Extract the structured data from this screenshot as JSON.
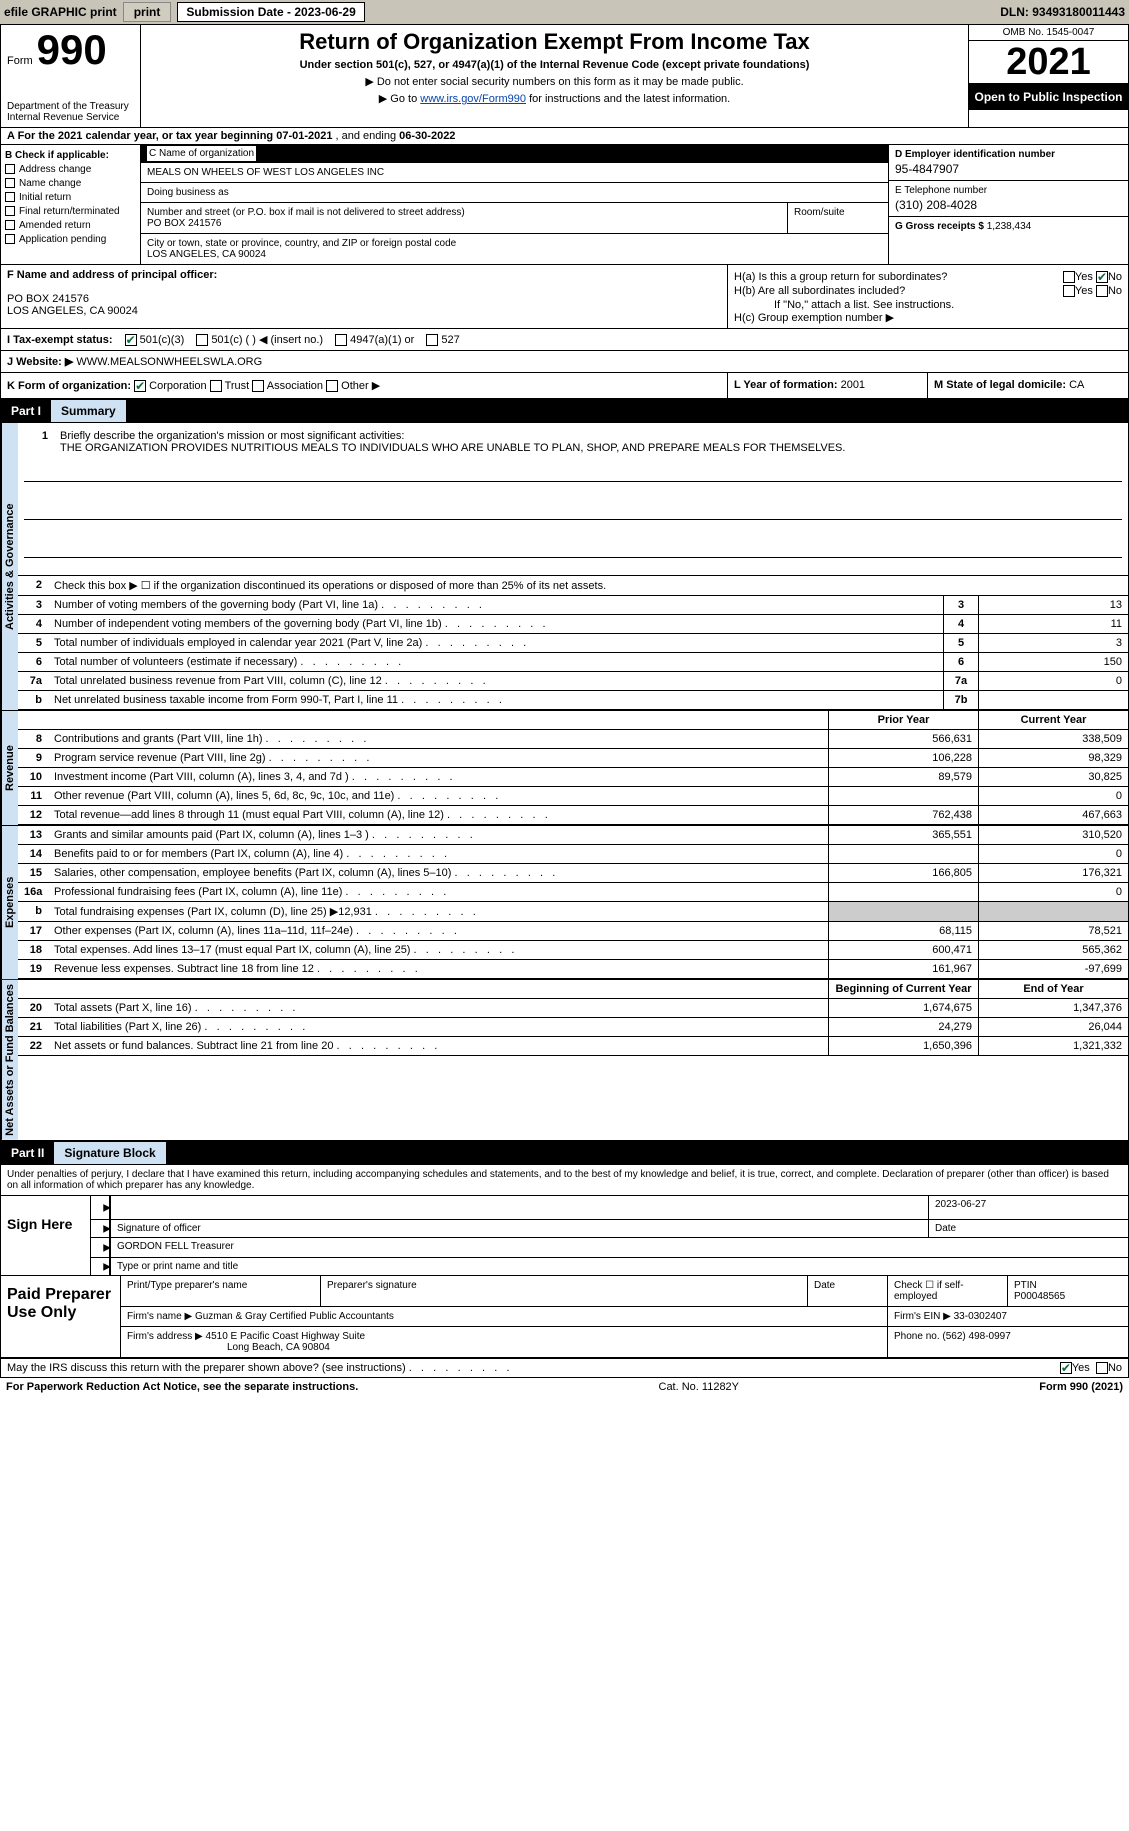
{
  "topbar": {
    "efile": "efile GRAPHIC print",
    "sub_label": "Submission Date - 2023-06-29",
    "dln": "DLN: 93493180011443"
  },
  "header": {
    "form_word": "Form",
    "form_num": "990",
    "title": "Return of Organization Exempt From Income Tax",
    "subtitle": "Under section 501(c), 527, or 4947(a)(1) of the Internal Revenue Code (except private foundations)",
    "note1": "▶ Do not enter social security numbers on this form as it may be made public.",
    "note2_pre": "▶ Go to ",
    "note2_link": "www.irs.gov/Form990",
    "note2_post": " for instructions and the latest information.",
    "dept": "Department of the Treasury",
    "irs": "Internal Revenue Service",
    "omb": "OMB No. 1545-0047",
    "year": "2021",
    "inspection": "Open to Public Inspection"
  },
  "section_a": {
    "text_pre": "A For the 2021 calendar year, or tax year beginning ",
    "begin": "07-01-2021",
    "mid": "  , and ending ",
    "end": "06-30-2022"
  },
  "col_b": {
    "label": "B Check if applicable:",
    "items": [
      "Address change",
      "Name change",
      "Initial return",
      "Final return/terminated",
      "Amended return",
      "Application pending"
    ]
  },
  "col_c": {
    "name_label": "C Name of organization",
    "name": "MEALS ON WHEELS OF WEST LOS ANGELES INC",
    "dba_label": "Doing business as",
    "addr_label": "Number and street (or P.O. box if mail is not delivered to street address)",
    "addr": "PO BOX 241576",
    "room_label": "Room/suite",
    "city_label": "City or town, state or province, country, and ZIP or foreign postal code",
    "city": "LOS ANGELES, CA  90024"
  },
  "col_d": {
    "ein_label": "D Employer identification number",
    "ein": "95-4847907",
    "tel_label": "E Telephone number",
    "tel": "(310) 208-4028",
    "gross_label": "G Gross receipts $",
    "gross": "1,238,434"
  },
  "col_f": {
    "label": "F  Name and address of principal officer:",
    "addr1": "PO BOX 241576",
    "addr2": "LOS ANGELES, CA  90024"
  },
  "col_h": {
    "ha": "H(a)  Is this a group return for subordinates?",
    "hb": "H(b)  Are all subordinates included?",
    "hb_note": "If \"No,\" attach a list. See instructions.",
    "hc": "H(c)  Group exemption number ▶",
    "yes": "Yes",
    "no": "No"
  },
  "row_i": {
    "label": "I  Tax-exempt status:",
    "o1": "501(c)(3)",
    "o2": "501(c) (  ) ◀ (insert no.)",
    "o3": "4947(a)(1) or",
    "o4": "527"
  },
  "row_j": {
    "label": "J  Website: ▶",
    "val": "WWW.MEALSONWHEELSWLA.ORG"
  },
  "row_k": {
    "label": "K Form of organization:",
    "corp": "Corporation",
    "trust": "Trust",
    "assoc": "Association",
    "other": "Other ▶",
    "l_label": "L Year of formation:",
    "l_val": "2001",
    "m_label": "M State of legal domicile:",
    "m_val": "CA"
  },
  "part1": {
    "label": "Part I",
    "title": "Summary"
  },
  "summary": {
    "gov_label": "Activities & Governance",
    "rev_label": "Revenue",
    "exp_label": "Expenses",
    "net_label": "Net Assets or Fund Balances",
    "mission_label": "Briefly describe the organization's mission or most significant activities:",
    "mission": "THE ORGANIZATION PROVIDES NUTRITIOUS MEALS TO INDIVIDUALS WHO ARE UNABLE TO PLAN, SHOP, AND PREPARE MEALS FOR THEMSELVES.",
    "line2": "Check this box ▶ ☐ if the organization discontinued its operations or disposed of more than 25% of its net assets.",
    "prior_year": "Prior Year",
    "current_year": "Current Year",
    "begin_year": "Beginning of Current Year",
    "end_year": "End of Year",
    "lines_gov": [
      {
        "n": "3",
        "t": "Number of voting members of the governing body (Part VI, line 1a)",
        "box": "3",
        "v": "13"
      },
      {
        "n": "4",
        "t": "Number of independent voting members of the governing body (Part VI, line 1b)",
        "box": "4",
        "v": "11"
      },
      {
        "n": "5",
        "t": "Total number of individuals employed in calendar year 2021 (Part V, line 2a)",
        "box": "5",
        "v": "3"
      },
      {
        "n": "6",
        "t": "Total number of volunteers (estimate if necessary)",
        "box": "6",
        "v": "150"
      },
      {
        "n": "7a",
        "t": "Total unrelated business revenue from Part VIII, column (C), line 12",
        "box": "7a",
        "v": "0"
      },
      {
        "n": "b",
        "t": "Net unrelated business taxable income from Form 990-T, Part I, line 11",
        "box": "7b",
        "v": ""
      }
    ],
    "lines_rev": [
      {
        "n": "8",
        "t": "Contributions and grants (Part VIII, line 1h)",
        "v1": "566,631",
        "v2": "338,509"
      },
      {
        "n": "9",
        "t": "Program service revenue (Part VIII, line 2g)",
        "v1": "106,228",
        "v2": "98,329"
      },
      {
        "n": "10",
        "t": "Investment income (Part VIII, column (A), lines 3, 4, and 7d )",
        "v1": "89,579",
        "v2": "30,825"
      },
      {
        "n": "11",
        "t": "Other revenue (Part VIII, column (A), lines 5, 6d, 8c, 9c, 10c, and 11e)",
        "v1": "",
        "v2": "0"
      },
      {
        "n": "12",
        "t": "Total revenue—add lines 8 through 11 (must equal Part VIII, column (A), line 12)",
        "v1": "762,438",
        "v2": "467,663"
      }
    ],
    "lines_exp": [
      {
        "n": "13",
        "t": "Grants and similar amounts paid (Part IX, column (A), lines 1–3 )",
        "v1": "365,551",
        "v2": "310,520"
      },
      {
        "n": "14",
        "t": "Benefits paid to or for members (Part IX, column (A), line 4)",
        "v1": "",
        "v2": "0"
      },
      {
        "n": "15",
        "t": "Salaries, other compensation, employee benefits (Part IX, column (A), lines 5–10)",
        "v1": "166,805",
        "v2": "176,321"
      },
      {
        "n": "16a",
        "t": "Professional fundraising fees (Part IX, column (A), line 11e)",
        "v1": "",
        "v2": "0"
      },
      {
        "n": "b",
        "t": "Total fundraising expenses (Part IX, column (D), line 25) ▶12,931",
        "v1": "shade",
        "v2": "shade"
      },
      {
        "n": "17",
        "t": "Other expenses (Part IX, column (A), lines 11a–11d, 11f–24e)",
        "v1": "68,115",
        "v2": "78,521"
      },
      {
        "n": "18",
        "t": "Total expenses. Add lines 13–17 (must equal Part IX, column (A), line 25)",
        "v1": "600,471",
        "v2": "565,362"
      },
      {
        "n": "19",
        "t": "Revenue less expenses. Subtract line 18 from line 12",
        "v1": "161,967",
        "v2": "-97,699"
      }
    ],
    "lines_net": [
      {
        "n": "20",
        "t": "Total assets (Part X, line 16)",
        "v1": "1,674,675",
        "v2": "1,347,376"
      },
      {
        "n": "21",
        "t": "Total liabilities (Part X, line 26)",
        "v1": "24,279",
        "v2": "26,044"
      },
      {
        "n": "22",
        "t": "Net assets or fund balances. Subtract line 21 from line 20",
        "v1": "1,650,396",
        "v2": "1,321,332"
      }
    ]
  },
  "part2": {
    "label": "Part II",
    "title": "Signature Block"
  },
  "penalties": "Under penalties of perjury, I declare that I have examined this return, including accompanying schedules and statements, and to the best of my knowledge and belief, it is true, correct, and complete. Declaration of preparer (other than officer) is based on all information of which preparer has any knowledge.",
  "sign": {
    "label": "Sign Here",
    "sig_officer": "Signature of officer",
    "date": "Date",
    "date_val": "2023-06-27",
    "name": "GORDON FELL  Treasurer",
    "name_label": "Type or print name and title"
  },
  "paid": {
    "label": "Paid Preparer Use Only",
    "print_label": "Print/Type preparer's name",
    "sig_label": "Preparer's signature",
    "date_label": "Date",
    "check_label": "Check ☐ if self-employed",
    "ptin_label": "PTIN",
    "ptin": "P00048565",
    "firm_name_label": "Firm's name   ▶",
    "firm_name": "Guzman & Gray Certified Public Accountants",
    "firm_ein_label": "Firm's EIN ▶",
    "firm_ein": "33-0302407",
    "firm_addr_label": "Firm's address ▶",
    "firm_addr1": "4510 E Pacific Coast Highway Suite",
    "firm_addr2": "Long Beach, CA  90804",
    "phone_label": "Phone no.",
    "phone": "(562) 498-0997"
  },
  "footer": {
    "discuss": "May the IRS discuss this return with the preparer shown above? (see instructions)",
    "yes": "Yes",
    "no": "No",
    "paperwork": "For Paperwork Reduction Act Notice, see the separate instructions.",
    "cat": "Cat. No. 11282Y",
    "form": "Form 990 (2021)"
  }
}
